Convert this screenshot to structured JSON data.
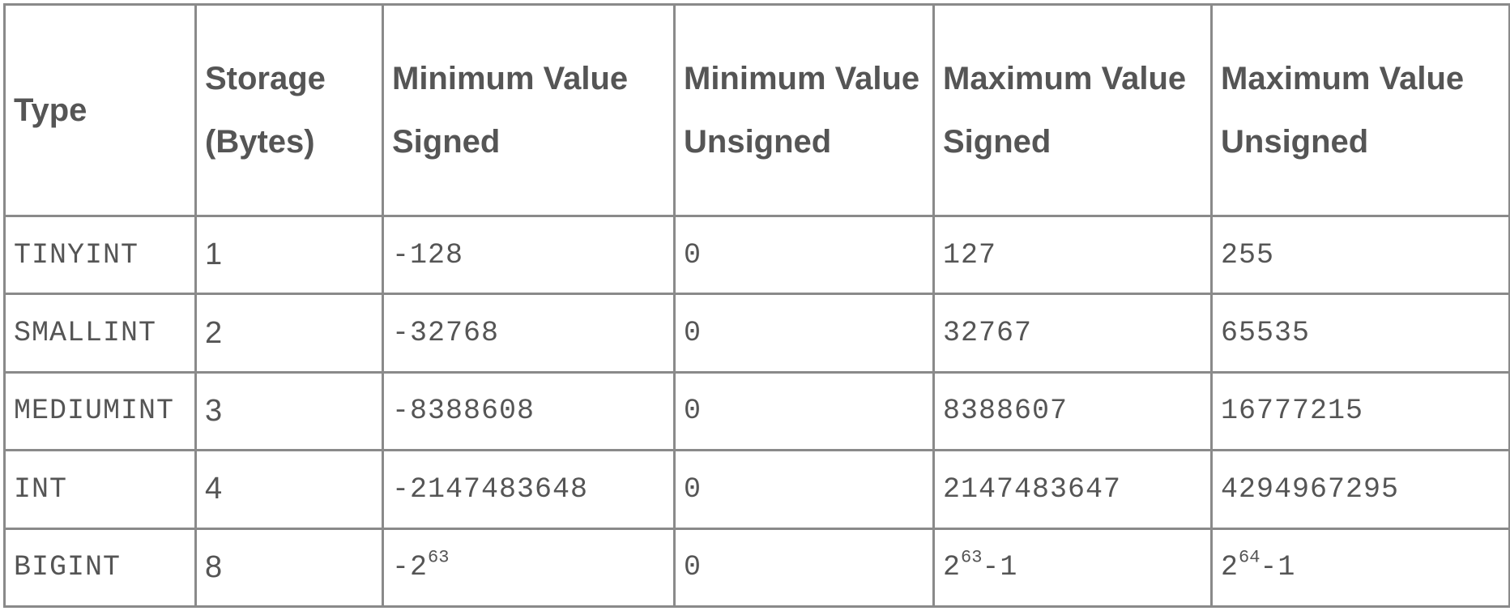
{
  "table": {
    "headers": [
      "Type",
      "Storage (Bytes)",
      "Minimum Value Signed",
      "Minimum Value Unsigned",
      "Maximum Value Signed",
      "Maximum Value Unsigned"
    ],
    "rows": [
      {
        "type": "TINYINT",
        "storage": "1",
        "min_signed": "-128",
        "min_unsigned": "0",
        "max_signed": "127",
        "max_unsigned": "255"
      },
      {
        "type": "SMALLINT",
        "storage": "2",
        "min_signed": "-32768",
        "min_unsigned": "0",
        "max_signed": "32767",
        "max_unsigned": "65535"
      },
      {
        "type": "MEDIUMINT",
        "storage": "3",
        "min_signed": "-8388608",
        "min_unsigned": "0",
        "max_signed": "8388607",
        "max_unsigned": "16777215"
      },
      {
        "type": "INT",
        "storage": "4",
        "min_signed": "-2147483648",
        "min_unsigned": "0",
        "max_signed": "2147483647",
        "max_unsigned": "4294967295"
      },
      {
        "type": "BIGINT",
        "storage": "8",
        "min_signed_base": "-2",
        "min_signed_exp": "63",
        "min_unsigned": "0",
        "max_signed_base": "2",
        "max_signed_exp": "63",
        "max_signed_suffix": "-1",
        "max_unsigned_base": "2",
        "max_unsigned_exp": "64",
        "max_unsigned_suffix": "-1"
      }
    ]
  },
  "colors": {
    "text": "#555555",
    "border": "#8a8a8a",
    "background": "#ffffff"
  }
}
